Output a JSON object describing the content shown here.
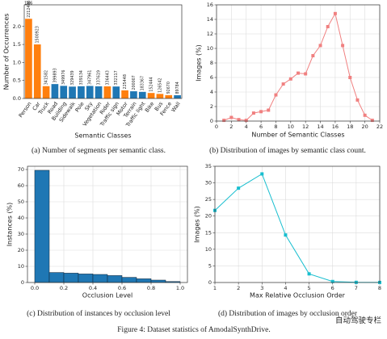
{
  "chart_data": [
    {
      "type": "bar",
      "caption": "(a) Number of segments per semantic class.",
      "x_label": "Semantic Classes",
      "y_label": "Number of Occurrences",
      "offset_text": "1e6",
      "categories": [
        "Person",
        "Car",
        "Truck",
        "Road",
        "Building",
        "Sidewalk",
        "Pole",
        "Sky",
        "Vegetation",
        "Rider",
        "Traffic sign",
        "Motor",
        "Terrain",
        "Traffic light",
        "Bike",
        "Bus",
        "Fence",
        "Wall"
      ],
      "values": [
        2212496,
        1500923,
        341582,
        399893,
        349976,
        329439,
        339134,
        347961,
        337619,
        336443,
        332117,
        225448,
        200007,
        183367,
        152444,
        126542,
        92670,
        89784
      ],
      "colors": [
        "#ff7f0e",
        "#ff7f0e",
        "#ff7f0e",
        "#1f77b4",
        "#1f77b4",
        "#1f77b4",
        "#1f77b4",
        "#1f77b4",
        "#1f77b4",
        "#ff7f0e",
        "#1f77b4",
        "#ff7f0e",
        "#1f77b4",
        "#1f77b4",
        "#ff7f0e",
        "#ff7f0e",
        "#ff7f0e",
        "#1f77b4"
      ],
      "ylim": [
        0,
        2600000
      ],
      "yticks": [
        {
          "value": 0,
          "label": "0.0"
        },
        {
          "value": 500000,
          "label": "0.5"
        },
        {
          "value": 1000000,
          "label": "1.0"
        },
        {
          "value": 1500000,
          "label": "1.5"
        },
        {
          "value": 2000000,
          "label": "2.0"
        }
      ],
      "grid": false
    },
    {
      "type": "line",
      "caption": "(b) Distribution of images by semantic class count.",
      "x_label": "Number of Semantic Classes",
      "y_label": "Images (%)",
      "color": "#f08080",
      "marker": "square",
      "x": [
        1,
        2,
        3,
        4,
        5,
        6,
        7,
        8,
        9,
        10,
        11,
        12,
        13,
        14,
        15,
        16,
        17,
        18,
        19,
        20,
        21
      ],
      "values": [
        0.1,
        0.5,
        0.2,
        0.1,
        1.1,
        1.3,
        1.5,
        3.6,
        5.1,
        5.8,
        6.6,
        6.5,
        9.0,
        10.4,
        13.0,
        14.8,
        10.4,
        6.0,
        2.9,
        0.8,
        0.1
      ],
      "xlim": [
        0,
        22
      ],
      "xticks": [
        0,
        2,
        4,
        6,
        8,
        10,
        12,
        14,
        16,
        18,
        20,
        22
      ],
      "ylim": [
        0,
        16
      ],
      "yticks": [
        0,
        2,
        4,
        6,
        8,
        10,
        12,
        14,
        16
      ],
      "grid": true
    },
    {
      "type": "histogram",
      "caption": "(c) Distribution of instances by occlusion level",
      "x_label": "Occlusion Level",
      "y_label": "Instances (%)",
      "color": "#1f77b4",
      "bins": [
        0,
        0.1,
        0.2,
        0.3,
        0.4,
        0.5,
        0.6,
        0.7,
        0.8,
        0.9,
        1.0
      ],
      "values": [
        69.5,
        6.2,
        5.8,
        5.3,
        5.0,
        4.3,
        3.2,
        2.3,
        1.5,
        0.6
      ],
      "xlim": [
        -0.05,
        1.05
      ],
      "xticks": [
        {
          "value": 0,
          "label": "0.0"
        },
        {
          "value": 0.2,
          "label": "0.2"
        },
        {
          "value": 0.4,
          "label": "0.4"
        },
        {
          "value": 0.6,
          "label": "0.6"
        },
        {
          "value": 0.8,
          "label": "0.8"
        },
        {
          "value": 1.0,
          "label": "1.0"
        }
      ],
      "ylim": [
        0,
        72
      ],
      "yticks": [
        0,
        10,
        20,
        30,
        40,
        50,
        60,
        70
      ],
      "grid": true
    },
    {
      "type": "line",
      "caption": "(d) Distribution of images by occlusion order",
      "x_label": "Max Relative Occlusion Order",
      "y_label": "Images (%)",
      "color": "#17becf",
      "marker": "square",
      "x": [
        1,
        2,
        3,
        4,
        5,
        6,
        7,
        8
      ],
      "values": [
        21.7,
        28.4,
        32.7,
        14.3,
        2.6,
        0.3,
        0.05,
        0.02
      ],
      "xlim": [
        1,
        8
      ],
      "xticks": [
        1,
        2,
        3,
        4,
        5,
        6,
        7,
        8
      ],
      "ylim": [
        0,
        35
      ],
      "yticks": [
        0,
        5,
        10,
        15,
        20,
        25,
        30,
        35
      ],
      "grid": true
    }
  ],
  "figure_caption": "Figure 4: Dataset statistics of AmodalSynthDrive.",
  "watermark": "自动驾驶专栏"
}
